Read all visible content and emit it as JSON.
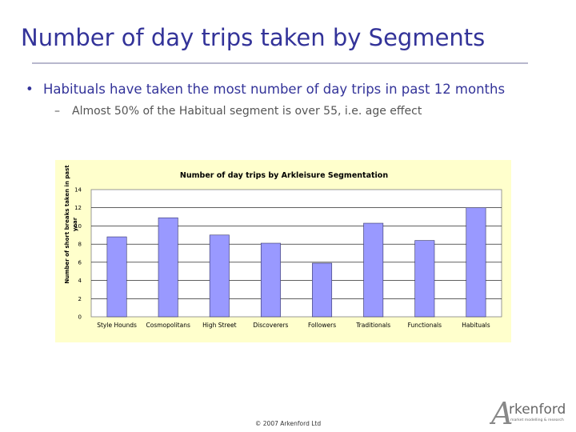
{
  "slide": {
    "title": "Number of day trips taken by Segments",
    "bullet_primary": "Habituals have taken the most number of day trips in past 12 months",
    "bullet_secondary": "Almost 50% of the Habitual segment is over 55, i.e. age effect",
    "footer": "© 2007 Arkenford Ltd"
  },
  "logo": {
    "text": "rkenford",
    "initial": "A",
    "tagline": "market modelling & research"
  },
  "icons": {
    "bullet": "bullet-dot-icon",
    "dash": "dash-icon"
  },
  "colors": {
    "title": "#333399",
    "bar_fill": "#9999ff",
    "bar_stroke": "#333366",
    "chart_background": "#ffffcc",
    "plot_background": "#ffffff"
  },
  "chart_data": {
    "type": "bar",
    "title": "Number of day trips by Arkleisure Segmentation",
    "xlabel": "",
    "ylabel": "Number of short breaks taken in past year",
    "categories": [
      "Style Hounds",
      "Cosmopolitans",
      "High Street",
      "Discoverers",
      "Followers",
      "Traditionals",
      "Functionals",
      "Habituals"
    ],
    "values": [
      8.8,
      10.9,
      9.0,
      8.1,
      5.9,
      10.3,
      8.4,
      12.0
    ],
    "ylim": [
      0,
      14
    ],
    "yticks": [
      0,
      2,
      4,
      6,
      8,
      10,
      12,
      14
    ],
    "grid": true,
    "legend": "none"
  }
}
